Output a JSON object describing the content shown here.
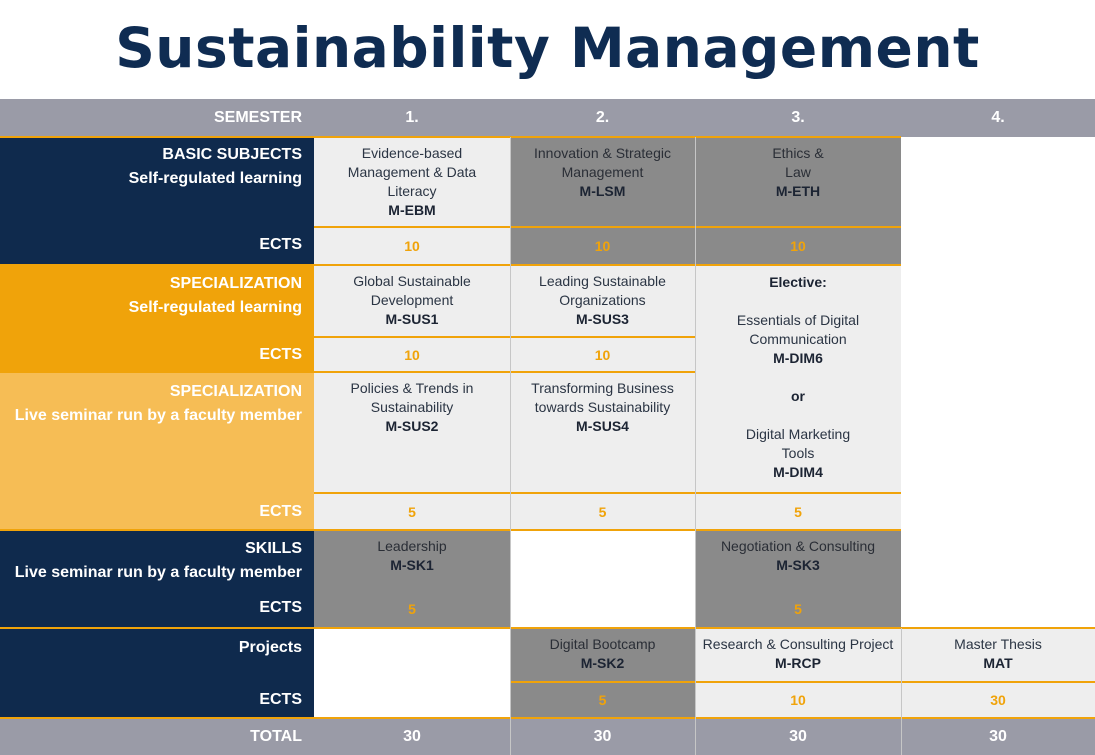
{
  "title": "Sustainability Management",
  "header": {
    "semester": "SEMESTER",
    "s1": "1.",
    "s2": "2.",
    "s3": "3.",
    "s4": "4."
  },
  "rows": {
    "basic": {
      "label1": "BASIC SUBJECTS",
      "label2": "Self-regulated learning",
      "ects_label": "ECTS",
      "s1": {
        "lines": [
          "Evidence-based",
          "Management & Data",
          "Literacy"
        ],
        "code": "M-EBM",
        "ects": "10"
      },
      "s2": {
        "lines": [
          "Innovation & Strategic",
          "Management"
        ],
        "code": "M-LSM",
        "ects": "10"
      },
      "s3": {
        "lines": [
          "Ethics &",
          "Law"
        ],
        "code": "M-ETH",
        "ects": "10"
      }
    },
    "spec1": {
      "label1": "SPECIALIZATION",
      "label2": "Self-regulated learning",
      "ects_label": "ECTS",
      "s1": {
        "lines": [
          "Global Sustainable",
          "Development"
        ],
        "code": "M-SUS1",
        "ects": "10"
      },
      "s2": {
        "lines": [
          "Leading Sustainable",
          "Organizations"
        ],
        "code": "M-SUS3",
        "ects": "10"
      }
    },
    "spec2": {
      "label1": "SPECIALIZATION",
      "label2": "Live seminar run by a faculty member",
      "ects_label": "ECTS",
      "s1": {
        "lines": [
          "Policies & Trends in",
          "Sustainability"
        ],
        "code": "M-SUS2",
        "ects": "5"
      },
      "s2": {
        "lines": [
          "Transforming Business",
          "towards Sustainability"
        ],
        "code": "M-SUS4",
        "ects": "5"
      },
      "s3_ects": "5"
    },
    "elective": {
      "head": "Elective:",
      "opt1a": "Essentials of Digital",
      "opt1b": "Communication",
      "code1": "M-DIM6",
      "or": "or",
      "opt2a": "Digital Marketing",
      "opt2b": "Tools",
      "code2": "M-DIM4"
    },
    "skills": {
      "label1": "SKILLS",
      "label2": "Live seminar run by a faculty member",
      "ects_label": "ECTS",
      "s1": {
        "lines": [
          "Leadership"
        ],
        "code": "M-SK1",
        "ects": "5"
      },
      "s3": {
        "lines": [
          "Negotiation & Consulting"
        ],
        "code": "M-SK3",
        "ects": "5"
      }
    },
    "projects": {
      "label1": "Projects",
      "ects_label": "ECTS",
      "s2": {
        "lines": [
          "Digital Bootcamp"
        ],
        "code": "M-SK2",
        "ects": "5"
      },
      "s3": {
        "lines": [
          "Research & Consulting Project"
        ],
        "code": "M-RCP",
        "ects": "10"
      },
      "s4": {
        "lines": [
          "Master Thesis"
        ],
        "code": "MAT",
        "ects": "30"
      }
    }
  },
  "total": {
    "label": "TOTAL",
    "s1": "30",
    "s2": "30",
    "s3": "30",
    "s4": "30"
  },
  "colors": {
    "navy": "#0f2a4d",
    "orange": "#f0a30a",
    "light_orange": "#f6bd55",
    "grey": "#9a9ba7",
    "dark_cell": "#8a8a8a",
    "light_cell": "#eeeeee"
  }
}
